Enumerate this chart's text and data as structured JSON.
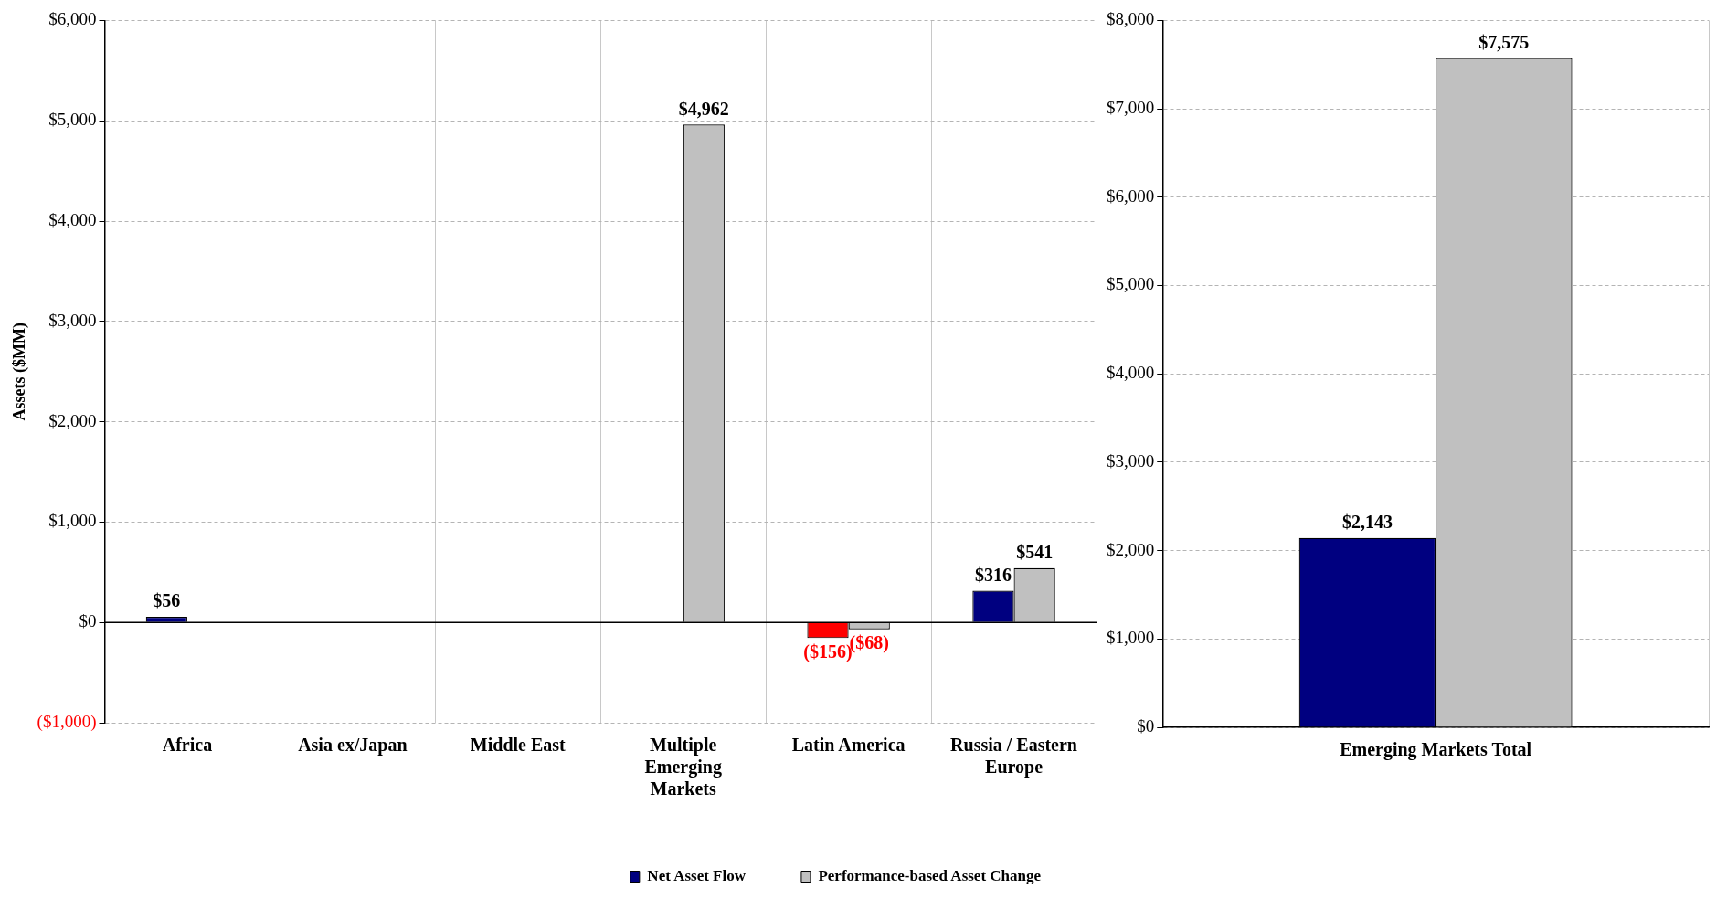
{
  "chart_data": [
    {
      "type": "bar",
      "ylabel": "Assets ($MM)",
      "categories": [
        "Africa",
        "Asia ex/Japan",
        "Middle East",
        "Multiple Emerging Markets",
        "Latin America",
        "Russia / Eastern Europe"
      ],
      "series": [
        {
          "name": "Net Asset Flow",
          "color": "#000080",
          "colors": [
            "#000080",
            "#000080",
            "#000080",
            "#000080",
            "#ff0000",
            "#000080"
          ],
          "values": [
            56,
            null,
            null,
            null,
            -156,
            316
          ],
          "value_labels": [
            "$56",
            null,
            null,
            null,
            "($156)",
            "$316"
          ]
        },
        {
          "name": "Performance-based Asset Change",
          "color": "#c0c0c0",
          "values": [
            null,
            null,
            null,
            4962,
            -68,
            541
          ],
          "value_labels": [
            null,
            null,
            null,
            "$4,962",
            "($68)",
            "$541"
          ]
        }
      ],
      "ylim": [
        -1000,
        6000
      ],
      "yticks": [
        {
          "value": -1000,
          "label": "($1,000)"
        },
        {
          "value": 0,
          "label": "$0"
        },
        {
          "value": 1000,
          "label": "$1,000"
        },
        {
          "value": 2000,
          "label": "$2,000"
        },
        {
          "value": 3000,
          "label": "$3,000"
        },
        {
          "value": 4000,
          "label": "$4,000"
        },
        {
          "value": 5000,
          "label": "$5,000"
        },
        {
          "value": 6000,
          "label": "$6,000"
        }
      ],
      "ref_lines": [
        {
          "axis": "y",
          "value": 0,
          "color": "#000000"
        }
      ],
      "grid": true,
      "legend": "bottom"
    },
    {
      "type": "bar",
      "categories": [
        "Emerging Markets Total"
      ],
      "series": [
        {
          "color": "#000080",
          "values": [
            2143
          ],
          "value_labels": [
            "$2,143"
          ]
        },
        {
          "color": "#c0c0c0",
          "values": [
            7575
          ],
          "value_labels": [
            "$7,575"
          ]
        }
      ],
      "ylim": [
        0,
        8000
      ],
      "yticks": [
        {
          "value": 0,
          "label": "$0"
        },
        {
          "value": 1000,
          "label": "$1,000"
        },
        {
          "value": 2000,
          "label": "$2,000"
        },
        {
          "value": 3000,
          "label": "$3,000"
        },
        {
          "value": 4000,
          "label": "$4,000"
        },
        {
          "value": 5000,
          "label": "$5,000"
        },
        {
          "value": 6000,
          "label": "$6,000"
        },
        {
          "value": 7000,
          "label": "$7,000"
        },
        {
          "value": 8000,
          "label": "$8,000"
        }
      ],
      "grid": true,
      "legend": false
    }
  ]
}
